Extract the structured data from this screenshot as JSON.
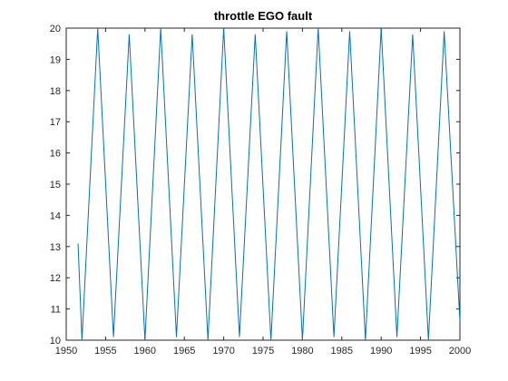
{
  "chart_data": {
    "type": "line",
    "title": "throttle EGO fault",
    "xlabel": "",
    "ylabel": "",
    "xlim": [
      1950,
      2000
    ],
    "ylim": [
      10,
      20
    ],
    "xticks": [
      1950,
      1955,
      1960,
      1965,
      1970,
      1975,
      1980,
      1985,
      1990,
      1995,
      2000
    ],
    "yticks": [
      10,
      11,
      12,
      13,
      14,
      15,
      16,
      17,
      18,
      19,
      20
    ],
    "grid": false,
    "series": [
      {
        "color": "#0072BD",
        "x": [
          1951.5,
          1952.0,
          1954.0,
          1956.0,
          1958.0,
          1960.0,
          1962.0,
          1964.0,
          1966.0,
          1968.0,
          1970.0,
          1972.0,
          1974.0,
          1976.0,
          1978.0,
          1980.0,
          1982.0,
          1984.0,
          1986.0,
          1988.0,
          1990.0,
          1992.0,
          1994.0,
          1996.0,
          1998.0,
          2000.0
        ],
        "y": [
          13.1,
          10.0,
          20.0,
          10.1,
          19.8,
          10.0,
          20.0,
          10.1,
          19.8,
          10.0,
          20.0,
          10.1,
          19.8,
          10.0,
          19.9,
          10.0,
          20.0,
          10.1,
          19.9,
          10.0,
          20.0,
          10.1,
          19.8,
          10.0,
          19.9,
          10.6
        ]
      }
    ]
  }
}
